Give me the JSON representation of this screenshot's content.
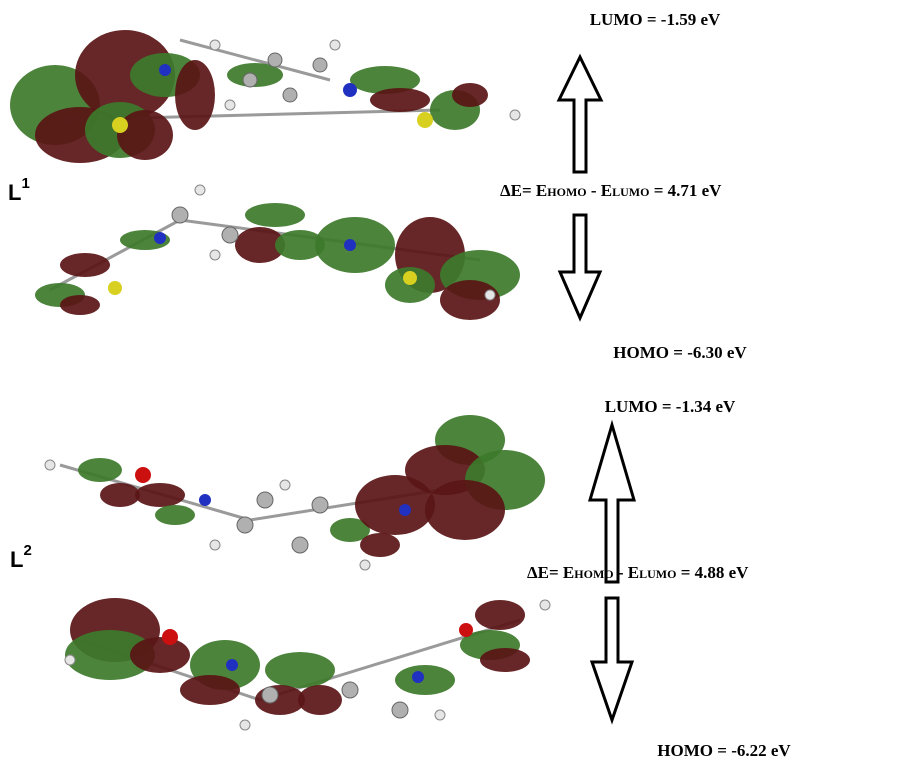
{
  "panels": [
    {
      "label": "L",
      "label_sup": "1",
      "lumo": "LUMO = -1.59 eV",
      "gap": [
        "ΔE= E",
        "HOMO",
        " - E",
        "LUMO",
        " = 4.71 eV"
      ],
      "homo": "HOMO = -6.30 eV"
    },
    {
      "label": "L",
      "label_sup": "2",
      "lumo": "LUMO = -1.34 eV",
      "gap": [
        "ΔE= E",
        "HOMO",
        " - E",
        "LUMO",
        " = 4.88 eV"
      ],
      "homo": "HOMO = -6.22 eV"
    }
  ]
}
